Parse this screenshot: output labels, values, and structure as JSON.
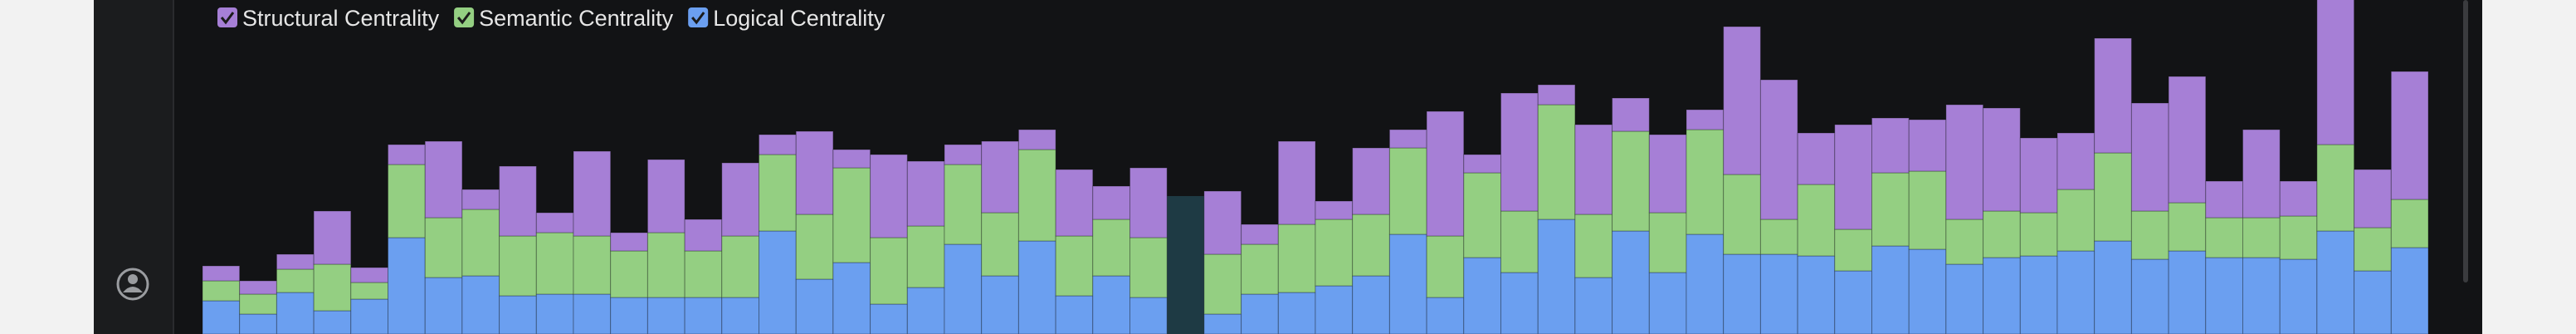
{
  "chart_data": {
    "type": "bar",
    "stacked": true,
    "categories": [
      null,
      null,
      null,
      null,
      null,
      null,
      null,
      null,
      null,
      null,
      null,
      null,
      null,
      null,
      null,
      null,
      null,
      null,
      null,
      null,
      null,
      null,
      null,
      null,
      null,
      null,
      null,
      null,
      null,
      null,
      null,
      null,
      null,
      null,
      null,
      null,
      null,
      null,
      null,
      null,
      null,
      null,
      null,
      null,
      null,
      null,
      null,
      null,
      null,
      null,
      null,
      null,
      null,
      null,
      null,
      null,
      null,
      null,
      null,
      null
    ],
    "ylim": [
      0,
      200
    ],
    "series": [
      {
        "name": "Structural Centrality",
        "color": "#a67fd6",
        "values": [
          9,
          8,
          9,
          32,
          9,
          12,
          46,
          12,
          42,
          12,
          51,
          11,
          44,
          19,
          44,
          12,
          50,
          11,
          50,
          39,
          12,
          43,
          12,
          40,
          20,
          42,
          0,
          38,
          12,
          50,
          11,
          40,
          11,
          75,
          11,
          71,
          12,
          54,
          20,
          47,
          12,
          89,
          84,
          31,
          63,
          33,
          31,
          69,
          62,
          45,
          34,
          69,
          65,
          76,
          22,
          53,
          21,
          89,
          35,
          77
        ]
      },
      {
        "name": "Semantic Centrality",
        "color": "#94cf82",
        "values": [
          12,
          12,
          14,
          28,
          10,
          44,
          36,
          40,
          36,
          37,
          35,
          28,
          39,
          28,
          37,
          46,
          39,
          57,
          40,
          37,
          48,
          38,
          55,
          36,
          34,
          36,
          0,
          36,
          30,
          41,
          40,
          37,
          52,
          37,
          51,
          37,
          69,
          38,
          60,
          36,
          63,
          48,
          21,
          43,
          25,
          44,
          47,
          27,
          28,
          26,
          37,
          53,
          29,
          29,
          24,
          24,
          26,
          52,
          26,
          29
        ]
      },
      {
        "name": "Logical Centrality",
        "color": "#6b9ff0",
        "values": [
          20,
          12,
          25,
          14,
          21,
          58,
          34,
          35,
          23,
          24,
          24,
          22,
          22,
          22,
          22,
          62,
          33,
          43,
          18,
          28,
          54,
          35,
          56,
          23,
          35,
          22,
          0,
          12,
          24,
          25,
          29,
          35,
          60,
          22,
          46,
          37,
          69,
          34,
          62,
          37,
          60,
          48,
          48,
          47,
          38,
          53,
          51,
          42,
          46,
          47,
          50,
          56,
          45,
          50,
          46,
          46,
          45,
          62,
          38,
          52
        ]
      }
    ]
  }
}
